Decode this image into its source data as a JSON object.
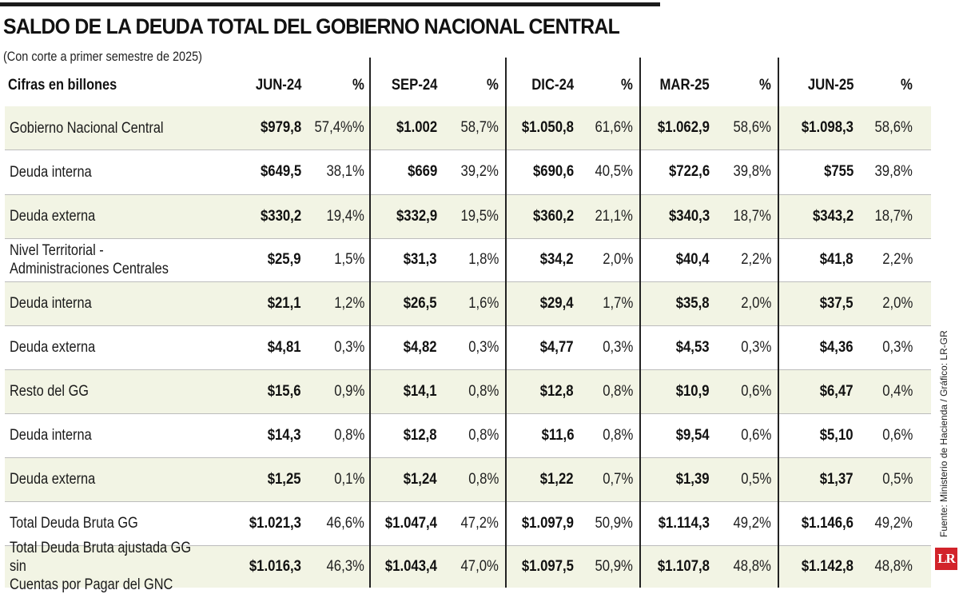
{
  "title": "SALDO DE LA DEUDA TOTAL DEL GOBIERNO NACIONAL CENTRAL",
  "subtitle": "(Con corte a primer semestre de 2025)",
  "units_label": "Cifras en billones",
  "source": "Fuente: Ministerio de Hacienda / Gráfico: LR-GR",
  "logo_text": "LR",
  "colors": {
    "shade": "#f2f4e4",
    "logo": "#d2232a",
    "rule": "#1b1b1b"
  },
  "chart_data": {
    "type": "table",
    "periods": [
      "JUN-24",
      "SEP-24",
      "DIC-24",
      "MAR-25",
      "JUN-25"
    ],
    "pct_header": "%",
    "rows": [
      {
        "label": "Gobierno Nacional Central",
        "shaded": true,
        "values": [
          "$979,8",
          "$1.002",
          "$1.050,8",
          "$1.062,9",
          "$1.098,3"
        ],
        "pcts": [
          "57,4%%",
          "58,7%",
          "61,6%",
          "58,6%",
          "58,6%"
        ]
      },
      {
        "label": "Deuda interna",
        "shaded": false,
        "values": [
          "$649,5",
          "$669",
          "$690,6",
          "$722,6",
          "$755"
        ],
        "pcts": [
          "38,1%",
          "39,2%",
          "40,5%",
          "39,8%",
          "39,8%"
        ]
      },
      {
        "label": "Deuda externa",
        "shaded": true,
        "values": [
          "$330,2",
          "$332,9",
          "$360,2",
          "$340,3",
          "$343,2"
        ],
        "pcts": [
          "19,4%",
          "19,5%",
          "21,1%",
          "18,7%",
          "18,7%"
        ]
      },
      {
        "label": "Nivel Territorial -\nAdministraciones Centrales",
        "shaded": false,
        "values": [
          "$25,9",
          "$31,3",
          "$34,2",
          "$40,4",
          "$41,8"
        ],
        "pcts": [
          "1,5%",
          "1,8%",
          "2,0%",
          "2,2%",
          "2,2%"
        ]
      },
      {
        "label": "Deuda interna",
        "shaded": true,
        "values": [
          "$21,1",
          "$26,5",
          "$29,4",
          "$35,8",
          "$37,5"
        ],
        "pcts": [
          "1,2%",
          "1,6%",
          "1,7%",
          "2,0%",
          "2,0%"
        ]
      },
      {
        "label": "Deuda externa",
        "shaded": false,
        "values": [
          "$4,81",
          "$4,82",
          "$4,77",
          "$4,53",
          "$4,36"
        ],
        "pcts": [
          "0,3%",
          "0,3%",
          "0,3%",
          "0,3%",
          "0,3%"
        ]
      },
      {
        "label": "Resto del GG",
        "shaded": true,
        "values": [
          "$15,6",
          "$14,1",
          "$12,8",
          "$10,9",
          "$6,47"
        ],
        "pcts": [
          "0,9%",
          "0,8%",
          "0,8%",
          "0,6%",
          "0,4%"
        ]
      },
      {
        "label": "Deuda interna",
        "shaded": false,
        "values": [
          "$14,3",
          "$12,8",
          "$11,6",
          "$9,54",
          "$5,10"
        ],
        "pcts": [
          "0,8%",
          "0,8%",
          "0,8%",
          "0,6%",
          "0,6%"
        ]
      },
      {
        "label": "Deuda externa",
        "shaded": true,
        "values": [
          "$1,25",
          "$1,24",
          "$1,22",
          "$1,39",
          "$1,37"
        ],
        "pcts": [
          "0,1%",
          "0,8%",
          "0,7%",
          "0,5%",
          "0,5%"
        ]
      },
      {
        "label": "Total Deuda Bruta GG",
        "shaded": false,
        "values": [
          "$1.021,3",
          "$1.047,4",
          "$1.097,9",
          "$1.114,3",
          "$1.146,6"
        ],
        "pcts": [
          "46,6%",
          "47,2%",
          "50,9%",
          "49,2%",
          "49,2%"
        ]
      },
      {
        "label": "Total Deuda Bruta ajustada GG sin\nCuentas por Pagar del GNC",
        "shaded": true,
        "values": [
          "$1.016,3",
          "$1.043,4",
          "$1.097,5",
          "$1.107,8",
          "$1.142,8"
        ],
        "pcts": [
          "46,3%",
          "47,0%",
          "50,9%",
          "48,8%",
          "48,8%"
        ]
      }
    ]
  }
}
